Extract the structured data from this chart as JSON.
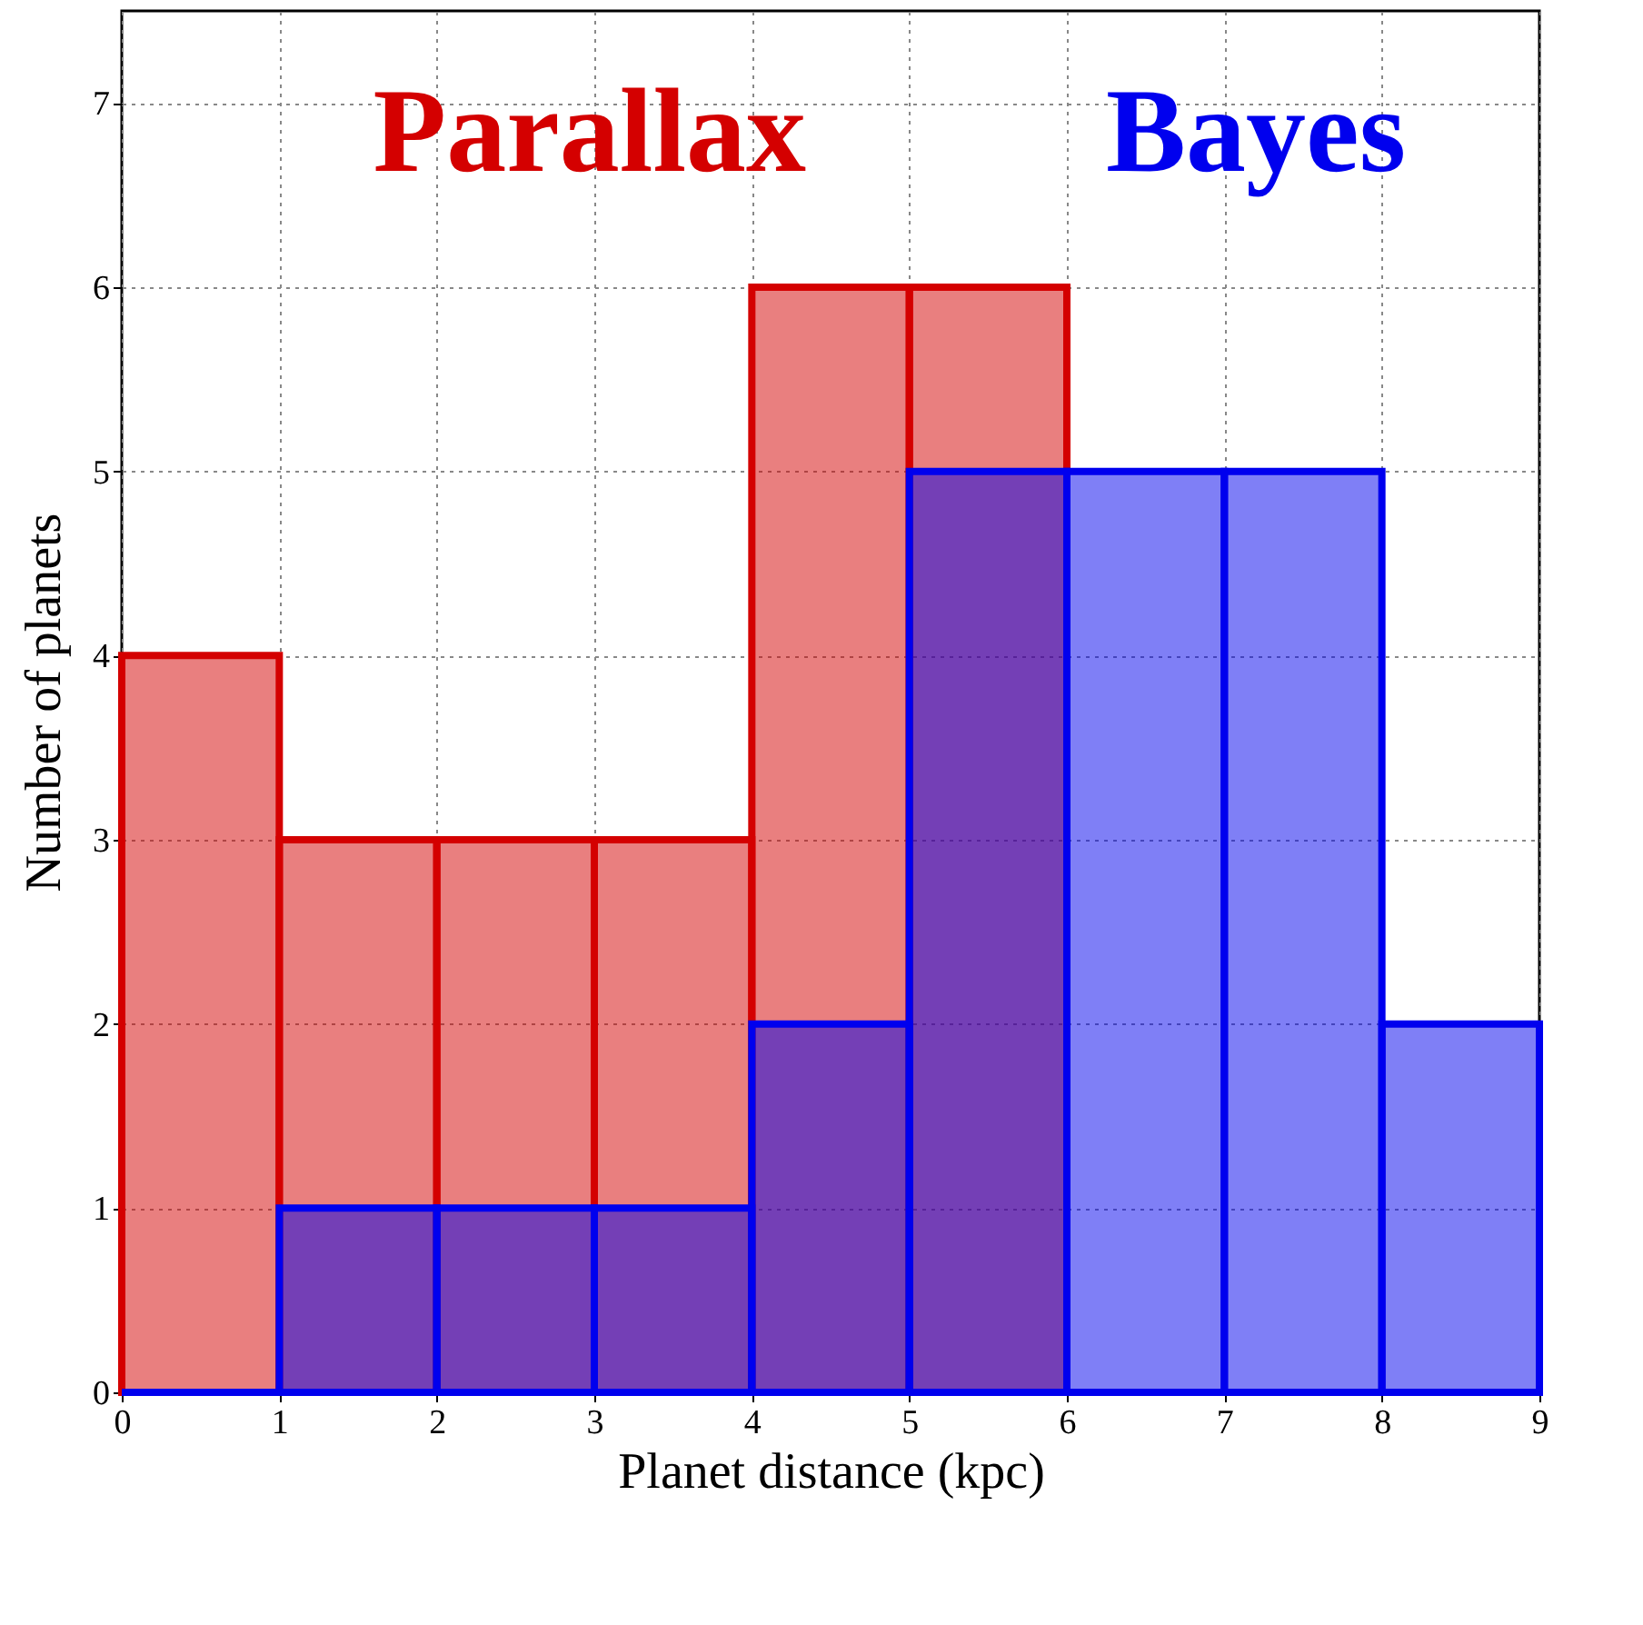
{
  "chart_data": {
    "type": "histogram",
    "xlabel": "Planet distance (kpc)",
    "ylabel": "Number of planets",
    "bins": [
      0,
      1,
      2,
      3,
      4,
      5,
      6,
      7,
      8,
      9
    ],
    "series": [
      {
        "name": "Parallax",
        "color": "#d40000",
        "values": [
          4,
          3,
          3,
          3,
          6,
          6,
          0,
          0,
          0
        ]
      },
      {
        "name": "Bayes",
        "color": "#0000ee",
        "values": [
          0,
          1,
          1,
          1,
          2,
          5,
          5,
          5,
          2
        ]
      }
    ],
    "xlim": [
      0,
      9
    ],
    "xticks": [
      0,
      1,
      2,
      3,
      4,
      5,
      6,
      7,
      8,
      9
    ],
    "ylim": [
      0,
      7.5
    ],
    "yticks": [
      0,
      1,
      2,
      3,
      4,
      5,
      6,
      7
    ],
    "grid": true
  }
}
